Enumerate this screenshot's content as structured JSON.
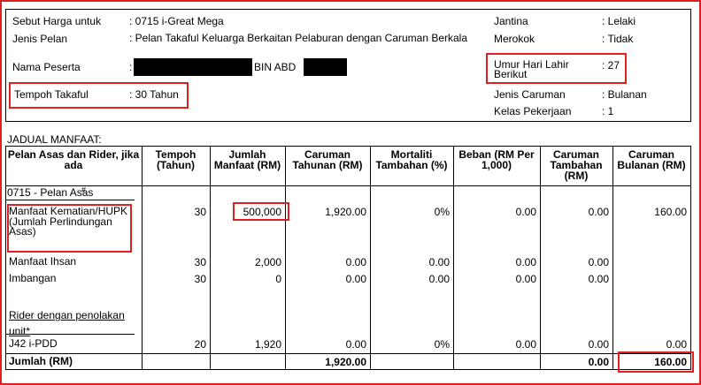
{
  "quote": {
    "left": [
      {
        "label": "Sebut Harga untuk",
        "value": ": 0715 i-Great Mega"
      },
      {
        "label": "Jenis Pelan",
        "value": ": Pelan Takaful Keluarga Berkaitan Pelaburan dengan Caruman Berkala"
      },
      {
        "label": "Nama Peserta",
        "value": ":",
        "name_middle": "BIN ABD"
      },
      {
        "label": "Tempoh Takaful",
        "value": ": 30 Tahun"
      }
    ],
    "right": [
      {
        "label": "Jantina",
        "value": ": Lelaki"
      },
      {
        "label": "Merokok",
        "value": ": Tidak"
      },
      {
        "label": "Umur Hari Lahir Berikut",
        "value": ": 27"
      },
      {
        "label": "Jenis Caruman",
        "value": ": Bulanan"
      },
      {
        "label": "Kelas Pekerjaan",
        "value": ": 1"
      }
    ]
  },
  "benefits": {
    "title": "JADUAL MANFAAT:",
    "headers": [
      "Pelan Asas dan Rider, jika ada",
      "Tempoh (Tahun)",
      "Jumlah Manfaat (RM)",
      "Caruman Tahunan (RM)",
      "Mortaliti Tambahan (%)",
      "Beban (RM Per 1,000)",
      "Caruman Tambahan (RM)",
      "Caruman Bulanan (RM)"
    ],
    "plan_label": "0715 - Pelan Asas",
    "plan_mark": "#",
    "rows": [
      [
        "Manfaat Kematian/HUPK (Jumlah Perlindungan Asas)",
        "30",
        "500,000",
        "1,920.00",
        "0%",
        "0.00",
        "0.00",
        "160.00"
      ],
      [
        "Manfaat Ihsan",
        "30",
        "2,000",
        "0.00",
        "0.00",
        "0.00",
        "0.00",
        null
      ],
      [
        "Imbangan",
        "30",
        "0",
        "0.00",
        "0.00",
        "0.00",
        "0.00",
        null
      ]
    ],
    "rider_label": "Rider dengan penolakan unit*",
    "rider_rows": [
      [
        "J42 i-PDD",
        "20",
        "1,920",
        "0.00",
        "0%",
        "0.00",
        "0.00",
        "0.00"
      ]
    ],
    "total": [
      "Jumlah (RM)",
      null,
      null,
      "1,920.00",
      null,
      null,
      "0.00",
      "160.00"
    ]
  }
}
